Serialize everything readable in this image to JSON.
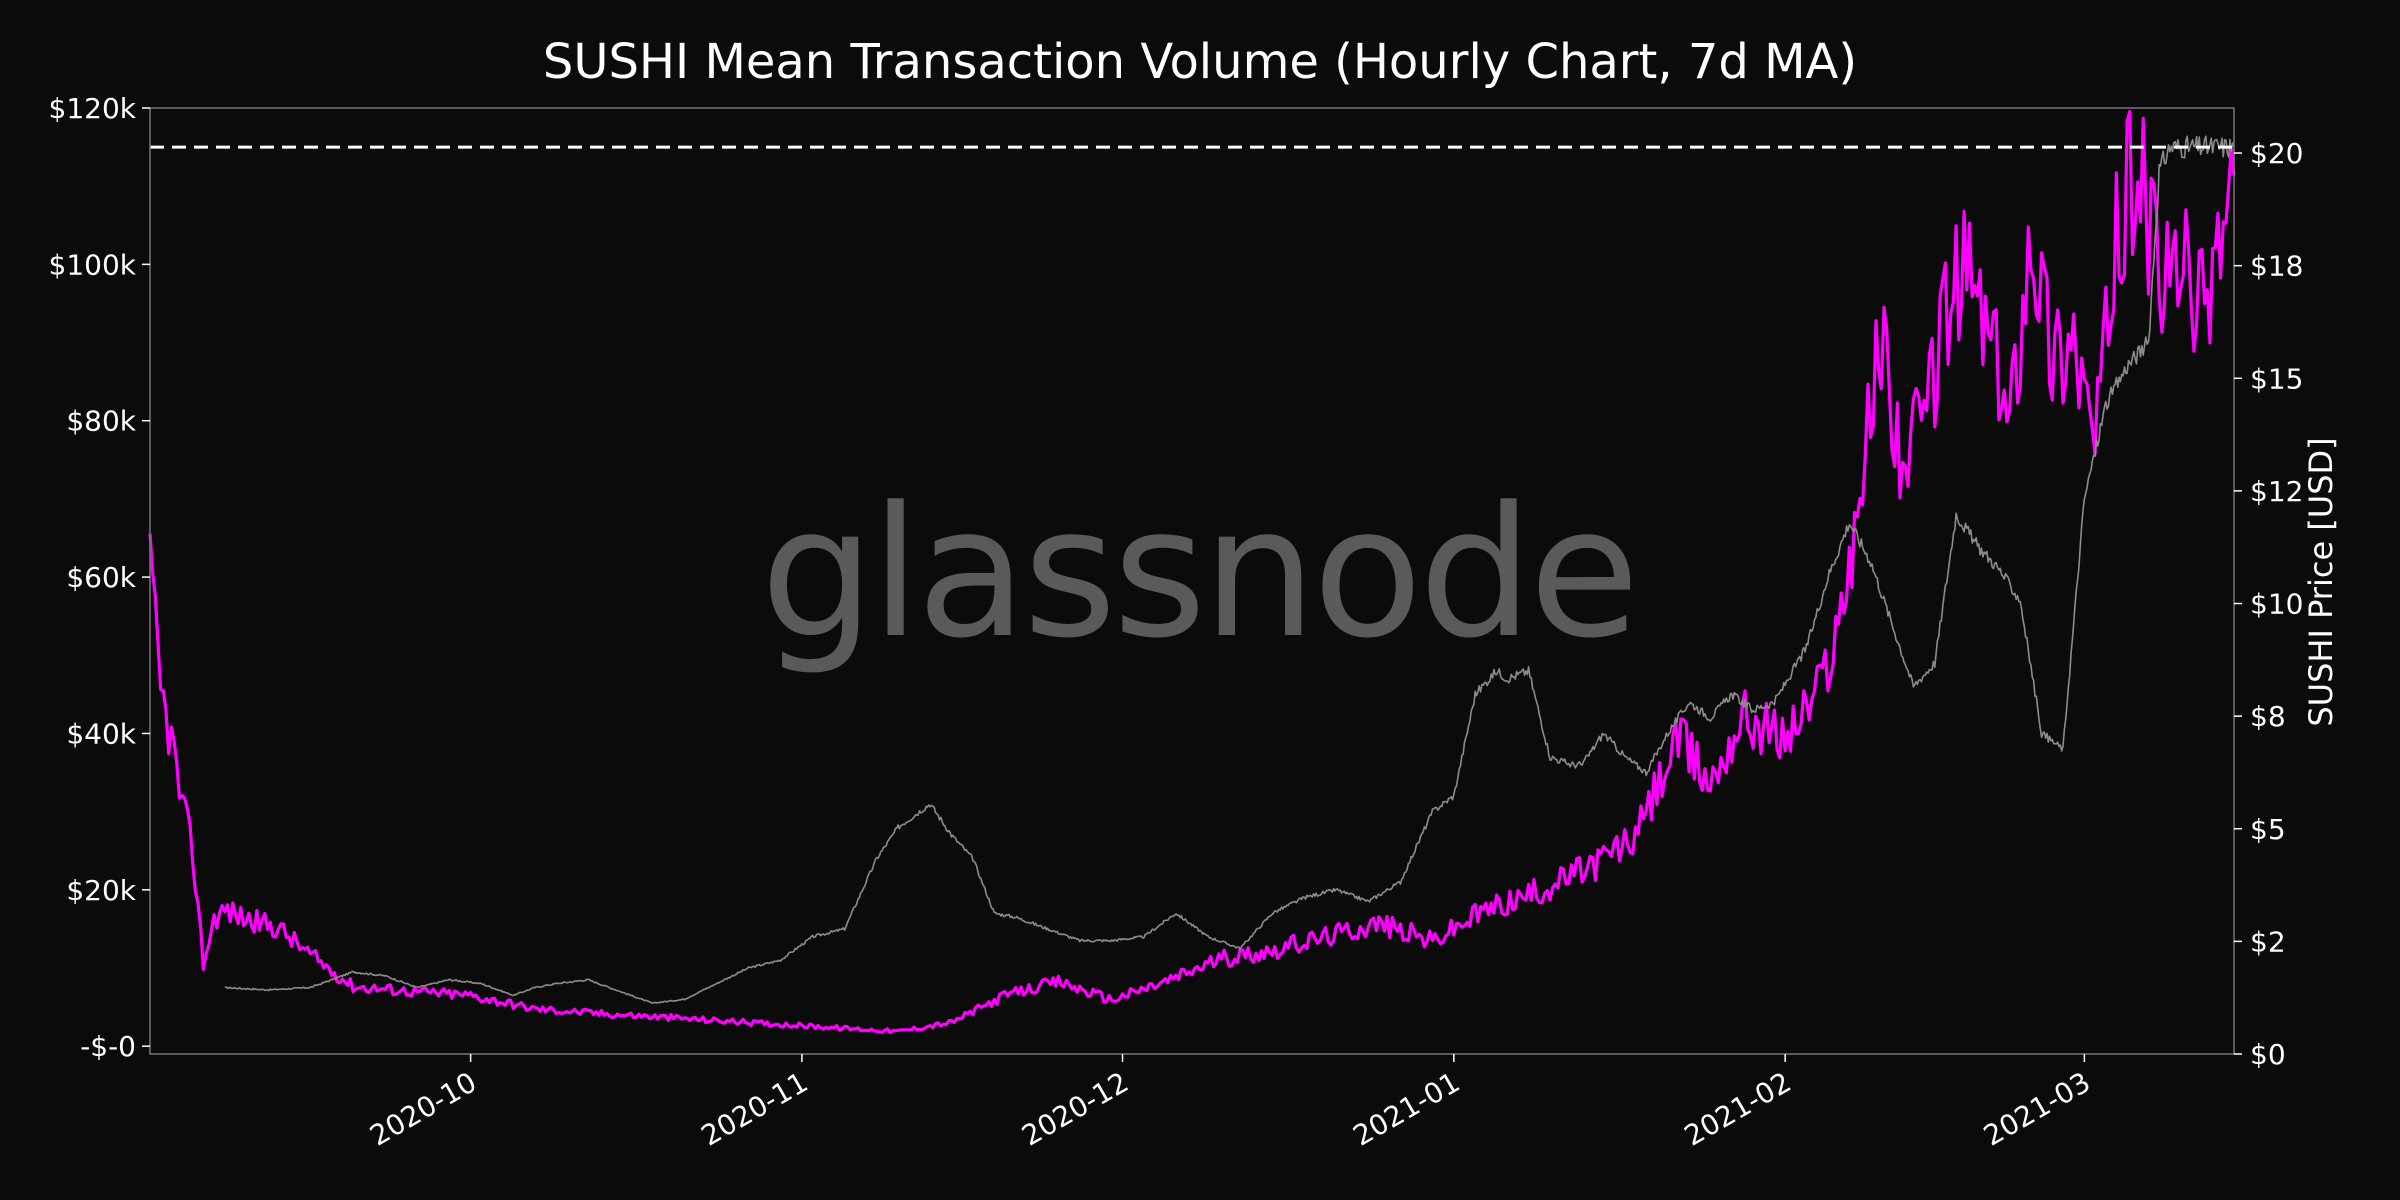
{
  "chart_data": {
    "type": "line",
    "title": "SUSHI Mean Transaction Volume (Hourly Chart, 7d MA)",
    "watermark": "glassnode",
    "xlabel": "",
    "ylabel_left": "",
    "ylabel_right": "SUSHI Price [USD]",
    "x_range": [
      "2020-09-01",
      "2021-03-15"
    ],
    "x_ticks": [
      "2020-10",
      "2020-11",
      "2020-12",
      "2021-01",
      "2021-02",
      "2021-03"
    ],
    "x_tick_dates": [
      "2020-10-01",
      "2020-11-01",
      "2020-12-01",
      "2021-01-01",
      "2021-02-01",
      "2021-03-01"
    ],
    "y_left": {
      "range": [
        -1000,
        120000
      ],
      "ticks": [
        0,
        20000,
        40000,
        60000,
        80000,
        100000,
        120000
      ],
      "tick_labels": [
        "-$-0",
        "$20k",
        "$40k",
        "$60k",
        "$80k",
        "$100k",
        "$120k"
      ]
    },
    "y_right": {
      "range": [
        0,
        21
      ],
      "ticks": [
        0,
        2.5,
        5,
        7.5,
        10,
        12.5,
        15,
        17.5,
        20
      ],
      "tick_labels": [
        "$0",
        "$2",
        "$5",
        "$8",
        "$10",
        "$12",
        "$15",
        "$18",
        "$20"
      ]
    },
    "reference_line": {
      "value": 115000,
      "axis": "left",
      "style": "dashed"
    },
    "colors": {
      "volume": "#ff00ff",
      "price": "#8c8c8c",
      "background": "#0b0b0b",
      "text": "#ffffff"
    },
    "series": [
      {
        "axis": "left",
        "x": [
          "2020-09-08",
          "2020-09-12",
          "2020-09-16",
          "2020-09-20",
          "2020-09-23",
          "2020-09-26",
          "2020-09-29",
          "2020-10-02",
          "2020-10-05",
          "2020-10-07",
          "2020-10-09",
          "2020-10-12",
          "2020-10-15",
          "2020-10-18",
          "2020-10-21",
          "2020-10-24",
          "2020-10-27",
          "2020-10-30",
          "2020-11-02",
          "2020-11-05",
          "2020-11-08",
          "2020-11-10",
          "2020-11-13",
          "2020-11-15",
          "2020-11-17",
          "2020-11-19",
          "2020-11-21",
          "2020-11-24",
          "2020-11-27",
          "2020-11-30",
          "2020-12-03",
          "2020-12-06",
          "2020-12-09",
          "2020-12-12",
          "2020-12-15",
          "2020-12-18",
          "2020-12-21",
          "2020-12-24",
          "2020-12-27",
          "2020-12-30",
          "2021-01-01",
          "2021-01-03",
          "2021-01-05",
          "2021-01-06",
          "2021-01-08",
          "2021-01-10",
          "2021-01-12",
          "2021-01-13",
          "2021-01-15",
          "2021-01-17",
          "2021-01-19",
          "2021-01-21",
          "2021-01-23",
          "2021-01-25",
          "2021-01-27",
          "2021-01-29",
          "2021-01-31",
          "2021-02-03",
          "2021-02-05",
          "2021-02-07",
          "2021-02-09",
          "2021-02-11",
          "2021-02-13",
          "2021-02-15",
          "2021-02-17",
          "2021-02-19",
          "2021-02-21",
          "2021-02-23",
          "2021-02-25",
          "2021-02-27",
          "2021-03-01",
          "2021-03-03",
          "2021-03-05",
          "2021-03-07",
          "2021-03-08",
          "2021-03-09",
          "2021-03-11",
          "2021-03-12",
          "2021-03-13",
          "2021-03-14",
          "2021-03-15"
        ],
        "values": [
          7500,
          7200,
          7500,
          9500,
          9000,
          7500,
          8500,
          8000,
          6500,
          7500,
          8000,
          8500,
          7000,
          5500,
          6000,
          8000,
          10000,
          11000,
          14000,
          15000,
          24000,
          28000,
          31000,
          27000,
          24000,
          17000,
          16500,
          15000,
          13500,
          13500,
          14000,
          17000,
          14000,
          12500,
          17000,
          19000,
          20000,
          18500,
          21000,
          30000,
          32000,
          45000,
          48000,
          47000,
          48000,
          37000,
          36000,
          36000,
          40000,
          37000,
          35000,
          40000,
          44000,
          42000,
          45000,
          43000,
          44000,
          51000,
          60000,
          67000,
          62000,
          54000,
          46000,
          49000,
          68000,
          64000,
          61000,
          57000,
          40000,
          38000,
          70000,
          82000,
          87000,
          90000,
          112000,
          115000,
          115000,
          115000,
          115000,
          115000,
          115000
        ]
      },
      {
        "axis": "right",
        "x": [
          "2020-09-01",
          "2020-09-02",
          "2020-09-03",
          "2020-09-04",
          "2020-09-05",
          "2020-09-06",
          "2020-09-07",
          "2020-09-08",
          "2020-09-10",
          "2020-09-13",
          "2020-09-16",
          "2020-09-20",
          "2020-09-25",
          "2020-10-01",
          "2020-10-07",
          "2020-10-13",
          "2020-10-20",
          "2020-10-27",
          "2020-11-03",
          "2020-11-10",
          "2020-11-15",
          "2020-11-20",
          "2020-11-25",
          "2020-11-30",
          "2020-12-05",
          "2020-12-10",
          "2020-12-15",
          "2020-12-20",
          "2020-12-25",
          "2020-12-30",
          "2021-01-04",
          "2021-01-09",
          "2021-01-14",
          "2021-01-18",
          "2021-01-22",
          "2021-01-25",
          "2021-01-28",
          "2021-02-01",
          "2021-02-04",
          "2021-02-06",
          "2021-02-08",
          "2021-02-10",
          "2021-02-12",
          "2021-02-14",
          "2021-02-16",
          "2021-02-18",
          "2021-02-20",
          "2021-02-22",
          "2021-02-24",
          "2021-02-26",
          "2021-02-28",
          "2021-03-02",
          "2021-03-04",
          "2021-03-06",
          "2021-03-08",
          "2021-03-10",
          "2021-03-12",
          "2021-03-14",
          "2021-03-15"
        ],
        "values": [
          10.8,
          8.0,
          7.0,
          5.5,
          4.5,
          2.0,
          3.0,
          3.2,
          3.0,
          2.8,
          2.2,
          1.5,
          1.4,
          1.3,
          1.0,
          0.9,
          0.8,
          0.7,
          0.6,
          0.5,
          0.7,
          1.3,
          1.6,
          1.2,
          1.6,
          2.1,
          2.3,
          2.6,
          2.9,
          2.5,
          3.2,
          3.6,
          4.2,
          4.8,
          7.0,
          6.0,
          7.5,
          7.0,
          8.0,
          9.5,
          12.5,
          16.0,
          13.0,
          14.0,
          16.5,
          17.5,
          16.0,
          14.0,
          18.5,
          15.5,
          16.0,
          13.5,
          18.0,
          20.0,
          17.0,
          17.5,
          16.5,
          18.5,
          19.5
        ]
      }
    ]
  }
}
